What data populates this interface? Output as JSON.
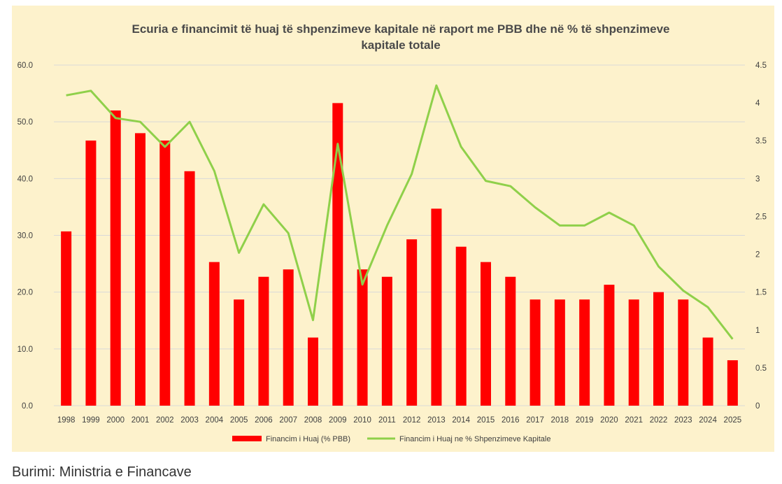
{
  "chart_data": {
    "type": "bar",
    "title": "Ecuria e financimit të huaj të shpenzimeve kapitale në raport me PBB dhe në % të shpenzimeve kapitale totale",
    "title_lines": [
      "Ecuria e financimit të huaj të shpenzimeve kapitale në raport me PBB dhe në % të shpenzimeve",
      "kapitale totale"
    ],
    "categories": [
      "1998",
      "1999",
      "2000",
      "2001",
      "2002",
      "2003",
      "2004",
      "2005",
      "2006",
      "2007",
      "2008",
      "2009",
      "2010",
      "2011",
      "2012",
      "2013",
      "2014",
      "2015",
      "2016",
      "2017",
      "2018",
      "2019",
      "2020",
      "2021",
      "2022",
      "2023",
      "2024",
      "2025"
    ],
    "series": [
      {
        "name": "Financim i Huaj (% PBB)",
        "type": "bar",
        "axis": "left",
        "color": "#ff0000",
        "values": [
          30.7,
          46.7,
          52.0,
          48.0,
          46.7,
          41.3,
          25.3,
          18.7,
          22.7,
          24.0,
          12.0,
          53.3,
          24.0,
          22.7,
          29.3,
          34.7,
          28.0,
          25.3,
          22.7,
          18.7,
          18.7,
          18.7,
          21.3,
          18.7,
          20.0,
          18.7,
          12.0,
          8.0
        ]
      },
      {
        "name": "Financim i Huaj ne % Shpenzimeve Kapitale",
        "type": "line",
        "axis": "right",
        "color": "#8fd04a",
        "values": [
          4.1,
          4.16,
          3.8,
          3.75,
          3.42,
          3.75,
          3.1,
          2.02,
          2.66,
          2.28,
          1.13,
          3.46,
          1.6,
          2.38,
          3.06,
          4.23,
          3.42,
          2.97,
          2.9,
          2.62,
          2.38,
          2.38,
          2.55,
          2.38,
          1.84,
          1.52,
          1.3,
          0.88
        ]
      }
    ],
    "y_left": {
      "min": 0,
      "max": 60,
      "ticks": [
        "0.0",
        "10.0",
        "20.0",
        "30.0",
        "40.0",
        "50.0",
        "60.0"
      ]
    },
    "y_right": {
      "min": 0,
      "max": 4.5,
      "ticks": [
        "0",
        "0.5",
        "1",
        "1.5",
        "2",
        "2.5",
        "3",
        "3.5",
        "4",
        "4.5"
      ]
    },
    "grid": true,
    "legend_position": "bottom"
  },
  "source_text": "Burimi: Ministria e Financave"
}
